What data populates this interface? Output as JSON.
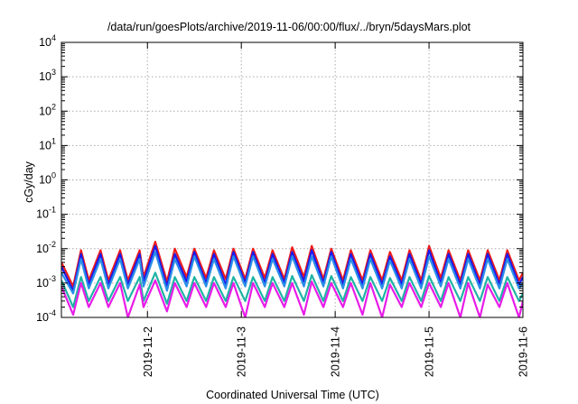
{
  "chart_data": {
    "type": "line",
    "title": "/data/run/goesPlots/archive/2019-11-06/00:00/flux/../bryn/5daysMars.plot",
    "xlabel": "Coordinated Universal Time (UTC)",
    "ylabel": "cGy/day",
    "y_scale": "log",
    "ylim": [
      0.0001,
      10000
    ],
    "xlim": [
      "2019-11-01T02:00",
      "2019-11-06T00:00"
    ],
    "y_ticks": [
      {
        "base": "10",
        "exp": "-4"
      },
      {
        "base": "10",
        "exp": "-3"
      },
      {
        "base": "10",
        "exp": "-2"
      },
      {
        "base": "10",
        "exp": "-1"
      },
      {
        "base": "10",
        "exp": "0"
      },
      {
        "base": "10",
        "exp": "1"
      },
      {
        "base": "10",
        "exp": "2"
      },
      {
        "base": "10",
        "exp": "3"
      },
      {
        "base": "10",
        "exp": "4"
      }
    ],
    "x_ticks": [
      "2019-11-2",
      "2019-11-3",
      "2019-11-4",
      "2019-11-5",
      "2019-11-6"
    ],
    "grid": true,
    "legend": "none",
    "series_colors": [
      "#ee1c1c",
      "#1a1aee",
      "#2a8fe8",
      "#1fb3a5",
      "#e81ce8"
    ],
    "series": [
      {
        "color": "#ee1c1c",
        "x": [
          "2019-11-01T02:00",
          "2019-11-01T05:00",
          "2019-11-01T07:00",
          "2019-11-01T09:00",
          "2019-11-01T12:00",
          "2019-11-01T14:00",
          "2019-11-01T17:00",
          "2019-11-01T19:00",
          "2019-11-01T22:00",
          "2019-11-01T23:00",
          "2019-11-02T02:00",
          "2019-11-02T05:00",
          "2019-11-02T07:00",
          "2019-11-02T10:00",
          "2019-11-02T12:00",
          "2019-11-02T15:00",
          "2019-11-02T17:00",
          "2019-11-02T20:00",
          "2019-11-02T22:00",
          "2019-11-03T01:00",
          "2019-11-03T03:00",
          "2019-11-03T06:00",
          "2019-11-03T08:00",
          "2019-11-03T11:00",
          "2019-11-03T13:00",
          "2019-11-03T16:00",
          "2019-11-03T18:00",
          "2019-11-03T21:00",
          "2019-11-03T23:00",
          "2019-11-04T02:00",
          "2019-11-04T04:00",
          "2019-11-04T07:00",
          "2019-11-04T09:00",
          "2019-11-04T12:00",
          "2019-11-04T14:00",
          "2019-11-04T17:00",
          "2019-11-04T19:00",
          "2019-11-04T22:00",
          "2019-11-05T00:00",
          "2019-11-05T03:00",
          "2019-11-05T05:00",
          "2019-11-05T08:00",
          "2019-11-05T10:00",
          "2019-11-05T13:00",
          "2019-11-05T15:00",
          "2019-11-05T18:00",
          "2019-11-05T20:00",
          "2019-11-05T23:00",
          "2019-11-06T00:00"
        ],
        "y": [
          0.004,
          0.0008,
          0.009,
          0.0012,
          0.009,
          0.0012,
          0.009,
          0.0012,
          0.009,
          0.0015,
          0.016,
          0.0011,
          0.01,
          0.0015,
          0.01,
          0.0014,
          0.009,
          0.0013,
          0.01,
          0.0013,
          0.01,
          0.0014,
          0.009,
          0.0013,
          0.011,
          0.0015,
          0.012,
          0.0013,
          0.01,
          0.0012,
          0.009,
          0.0012,
          0.009,
          0.0012,
          0.008,
          0.0012,
          0.009,
          0.0012,
          0.012,
          0.0014,
          0.009,
          0.0012,
          0.009,
          0.0012,
          0.009,
          0.0012,
          0.009,
          0.0012,
          0.002
        ]
      },
      {
        "color": "#1a1aee",
        "x": [
          "2019-11-01T02:00",
          "2019-11-01T05:00",
          "2019-11-01T07:00",
          "2019-11-01T09:00",
          "2019-11-01T12:00",
          "2019-11-01T14:00",
          "2019-11-01T17:00",
          "2019-11-01T19:00",
          "2019-11-01T22:00",
          "2019-11-01T23:00",
          "2019-11-02T02:00",
          "2019-11-02T05:00",
          "2019-11-02T07:00",
          "2019-11-02T10:00",
          "2019-11-02T12:00",
          "2019-11-02T15:00",
          "2019-11-02T17:00",
          "2019-11-02T20:00",
          "2019-11-02T22:00",
          "2019-11-03T01:00",
          "2019-11-03T03:00",
          "2019-11-03T06:00",
          "2019-11-03T08:00",
          "2019-11-03T11:00",
          "2019-11-03T13:00",
          "2019-11-03T16:00",
          "2019-11-03T18:00",
          "2019-11-03T21:00",
          "2019-11-03T23:00",
          "2019-11-04T02:00",
          "2019-11-04T04:00",
          "2019-11-04T07:00",
          "2019-11-04T09:00",
          "2019-11-04T12:00",
          "2019-11-04T14:00",
          "2019-11-04T17:00",
          "2019-11-04T19:00",
          "2019-11-04T22:00",
          "2019-11-05T00:00",
          "2019-11-05T03:00",
          "2019-11-05T05:00",
          "2019-11-05T08:00",
          "2019-11-05T10:00",
          "2019-11-05T13:00",
          "2019-11-05T15:00",
          "2019-11-05T18:00",
          "2019-11-05T20:00",
          "2019-11-05T23:00",
          "2019-11-06T00:00"
        ],
        "y": [
          0.003,
          0.0006,
          0.007,
          0.0009,
          0.007,
          0.0009,
          0.007,
          0.0009,
          0.007,
          0.0011,
          0.012,
          0.0008,
          0.007,
          0.0011,
          0.008,
          0.001,
          0.007,
          0.0009,
          0.008,
          0.001,
          0.008,
          0.001,
          0.007,
          0.001,
          0.008,
          0.0011,
          0.009,
          0.001,
          0.008,
          0.0009,
          0.007,
          0.0009,
          0.007,
          0.0009,
          0.006,
          0.0009,
          0.007,
          0.0009,
          0.009,
          0.001,
          0.007,
          0.0009,
          0.007,
          0.0009,
          0.007,
          0.0009,
          0.007,
          0.0009,
          0.0015
        ]
      },
      {
        "color": "#2a8fe8",
        "x": [
          "2019-11-01T02:00",
          "2019-11-01T05:00",
          "2019-11-01T07:00",
          "2019-11-01T09:00",
          "2019-11-01T12:00",
          "2019-11-01T14:00",
          "2019-11-01T17:00",
          "2019-11-01T19:00",
          "2019-11-01T22:00",
          "2019-11-01T23:00",
          "2019-11-02T02:00",
          "2019-11-02T05:00",
          "2019-11-02T07:00",
          "2019-11-02T10:00",
          "2019-11-02T12:00",
          "2019-11-02T15:00",
          "2019-11-02T17:00",
          "2019-11-02T20:00",
          "2019-11-02T22:00",
          "2019-11-03T01:00",
          "2019-11-03T03:00",
          "2019-11-03T06:00",
          "2019-11-03T08:00",
          "2019-11-03T11:00",
          "2019-11-03T13:00",
          "2019-11-03T16:00",
          "2019-11-03T18:00",
          "2019-11-03T21:00",
          "2019-11-03T23:00",
          "2019-11-04T02:00",
          "2019-11-04T04:00",
          "2019-11-04T07:00",
          "2019-11-04T09:00",
          "2019-11-04T12:00",
          "2019-11-04T14:00",
          "2019-11-04T17:00",
          "2019-11-04T19:00",
          "2019-11-04T22:00",
          "2019-11-05T00:00",
          "2019-11-05T03:00",
          "2019-11-05T05:00",
          "2019-11-05T08:00",
          "2019-11-05T10:00",
          "2019-11-05T13:00",
          "2019-11-05T15:00",
          "2019-11-05T18:00",
          "2019-11-05T20:00",
          "2019-11-05T23:00",
          "2019-11-06T00:00"
        ],
        "y": [
          0.002,
          0.0005,
          0.005,
          0.0007,
          0.005,
          0.0007,
          0.005,
          0.0007,
          0.005,
          0.0008,
          0.008,
          0.0006,
          0.005,
          0.0008,
          0.006,
          0.0008,
          0.005,
          0.0007,
          0.006,
          0.0008,
          0.006,
          0.0008,
          0.005,
          0.0008,
          0.006,
          0.0008,
          0.006,
          0.0008,
          0.006,
          0.0007,
          0.005,
          0.0007,
          0.005,
          0.0007,
          0.0045,
          0.0007,
          0.005,
          0.0007,
          0.006,
          0.0008,
          0.005,
          0.0007,
          0.005,
          0.0007,
          0.005,
          0.0007,
          0.005,
          0.0007,
          0.001
        ]
      },
      {
        "color": "#1fb3a5",
        "x": [
          "2019-11-01T02:00",
          "2019-11-01T05:00",
          "2019-11-01T07:00",
          "2019-11-01T09:00",
          "2019-11-01T12:00",
          "2019-11-01T14:00",
          "2019-11-01T17:00",
          "2019-11-01T19:00",
          "2019-11-01T22:00",
          "2019-11-01T23:00",
          "2019-11-02T02:00",
          "2019-11-02T05:00",
          "2019-11-02T07:00",
          "2019-11-02T10:00",
          "2019-11-02T12:00",
          "2019-11-02T15:00",
          "2019-11-02T17:00",
          "2019-11-02T20:00",
          "2019-11-02T22:00",
          "2019-11-03T01:00",
          "2019-11-03T03:00",
          "2019-11-03T06:00",
          "2019-11-03T08:00",
          "2019-11-03T11:00",
          "2019-11-03T13:00",
          "2019-11-03T16:00",
          "2019-11-03T18:00",
          "2019-11-03T21:00",
          "2019-11-03T23:00",
          "2019-11-04T02:00",
          "2019-11-04T04:00",
          "2019-11-04T07:00",
          "2019-11-04T09:00",
          "2019-11-04T12:00",
          "2019-11-04T14:00",
          "2019-11-04T17:00",
          "2019-11-04T19:00",
          "2019-11-04T22:00",
          "2019-11-05T00:00",
          "2019-11-05T03:00",
          "2019-11-05T05:00",
          "2019-11-05T08:00",
          "2019-11-05T10:00",
          "2019-11-05T13:00",
          "2019-11-05T15:00",
          "2019-11-05T18:00",
          "2019-11-05T20:00",
          "2019-11-05T23:00",
          "2019-11-06T00:00"
        ],
        "y": [
          0.0012,
          0.0002,
          0.0015,
          0.0003,
          0.0015,
          0.0003,
          0.0015,
          0.0003,
          0.0015,
          0.0003,
          0.002,
          0.00025,
          0.0015,
          0.0003,
          0.0015,
          0.0003,
          0.0015,
          0.0003,
          0.0015,
          0.0003,
          0.0015,
          0.0003,
          0.0015,
          0.0003,
          0.0016,
          0.0003,
          0.0017,
          0.0003,
          0.0016,
          0.0003,
          0.0015,
          0.0003,
          0.0015,
          0.0003,
          0.0014,
          0.0003,
          0.0015,
          0.0003,
          0.0016,
          0.0003,
          0.0015,
          0.0003,
          0.0015,
          0.0003,
          0.0015,
          0.0003,
          0.0015,
          0.0003,
          0.0005
        ]
      },
      {
        "color": "#e81ce8",
        "x": [
          "2019-11-01T02:00",
          "2019-11-01T05:00",
          "2019-11-01T07:00",
          "2019-11-01T09:00",
          "2019-11-01T12:00",
          "2019-11-01T14:00",
          "2019-11-01T17:00",
          "2019-11-01T19:00",
          "2019-11-01T22:00",
          "2019-11-01T23:00",
          "2019-11-02T02:00",
          "2019-11-02T05:00",
          "2019-11-02T07:00",
          "2019-11-02T10:00",
          "2019-11-02T12:00",
          "2019-11-02T15:00",
          "2019-11-02T17:00",
          "2019-11-02T20:00",
          "2019-11-02T22:00",
          "2019-11-03T01:00",
          "2019-11-03T03:00",
          "2019-11-03T06:00",
          "2019-11-03T08:00",
          "2019-11-03T11:00",
          "2019-11-03T13:00",
          "2019-11-03T16:00",
          "2019-11-03T18:00",
          "2019-11-03T21:00",
          "2019-11-03T23:00",
          "2019-11-04T02:00",
          "2019-11-04T04:00",
          "2019-11-04T07:00",
          "2019-11-04T09:00",
          "2019-11-04T12:00",
          "2019-11-04T14:00",
          "2019-11-04T17:00",
          "2019-11-04T19:00",
          "2019-11-04T22:00",
          "2019-11-05T00:00",
          "2019-11-05T03:00",
          "2019-11-05T05:00",
          "2019-11-05T08:00",
          "2019-11-05T10:00",
          "2019-11-05T13:00",
          "2019-11-05T15:00",
          "2019-11-05T18:00",
          "2019-11-05T20:00",
          "2019-11-05T23:00",
          "2019-11-06T00:00"
        ],
        "y": [
          0.0008,
          0.00012,
          0.001,
          0.0002,
          0.001,
          0.0002,
          0.001,
          0.0001,
          0.0009,
          0.0002,
          0.0012,
          0.00015,
          0.001,
          0.0002,
          0.001,
          0.0002,
          0.001,
          0.0002,
          0.001,
          0.0001,
          0.001,
          0.0002,
          0.001,
          0.0002,
          0.001,
          0.00012,
          0.0011,
          0.0002,
          0.001,
          0.0002,
          0.001,
          0.00012,
          0.001,
          0.0001,
          0.0009,
          0.0002,
          0.001,
          0.0002,
          0.001,
          0.0002,
          0.001,
          0.0001,
          0.001,
          0.0001,
          0.0009,
          0.0002,
          0.001,
          0.0001,
          0.0003
        ]
      }
    ]
  }
}
